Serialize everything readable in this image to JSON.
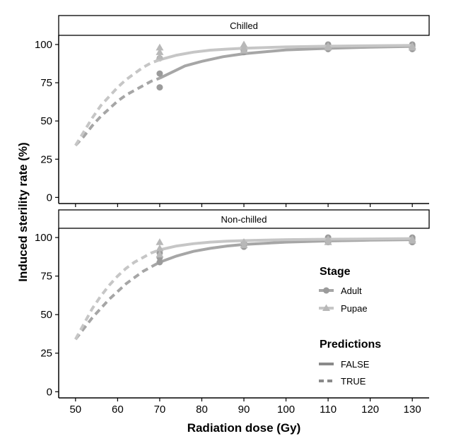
{
  "chart_data": {
    "type": "line",
    "xlabel": "Radiation dose (Gy)",
    "ylabel": "Induced sterility rate (%)",
    "xlim": [
      46,
      134
    ],
    "ylim": [
      -4,
      106
    ],
    "x_ticks": [
      50,
      60,
      70,
      80,
      90,
      100,
      110,
      120,
      130
    ],
    "y_ticks": [
      0,
      25,
      50,
      75,
      100
    ],
    "grid": false,
    "panels": [
      {
        "strip_label": "Chilled",
        "series": [
          {
            "name": "Adult",
            "points": [
              [
                70,
                72
              ],
              [
                70,
                81
              ],
              [
                70,
                91
              ],
              [
                90,
                95
              ],
              [
                90,
                96
              ],
              [
                90,
                97
              ],
              [
                110,
                97
              ],
              [
                110,
                98
              ],
              [
                110,
                100
              ],
              [
                130,
                97
              ],
              [
                130,
                99
              ],
              [
                130,
                100
              ]
            ],
            "curve_dashed": [
              [
                50,
                34
              ],
              [
                52,
                40
              ],
              [
                54,
                47
              ],
              [
                56,
                53
              ],
              [
                58,
                58
              ],
              [
                60,
                63
              ],
              [
                62,
                67
              ],
              [
                64,
                70
              ],
              [
                66,
                73
              ],
              [
                68,
                76
              ],
              [
                70,
                78
              ]
            ],
            "curve_solid": [
              [
                70,
                78
              ],
              [
                73,
                82
              ],
              [
                76,
                86
              ],
              [
                80,
                89
              ],
              [
                85,
                92
              ],
              [
                90,
                94
              ],
              [
                100,
                96.5
              ],
              [
                110,
                97.5
              ],
              [
                120,
                98.3
              ],
              [
                130,
                98.8
              ]
            ]
          },
          {
            "name": "Pupae",
            "points": [
              [
                70,
                92
              ],
              [
                70,
                95
              ],
              [
                70,
                98
              ],
              [
                90,
                96
              ],
              [
                90,
                98
              ],
              [
                90,
                100
              ],
              [
                110,
                98
              ],
              [
                110,
                99
              ],
              [
                130,
                98
              ],
              [
                130,
                99
              ]
            ],
            "curve_dashed": [
              [
                50,
                34
              ],
              [
                52,
                43
              ],
              [
                54,
                52
              ],
              [
                56,
                60
              ],
              [
                58,
                66
              ],
              [
                60,
                72
              ],
              [
                62,
                77
              ],
              [
                64,
                81
              ],
              [
                66,
                85
              ],
              [
                68,
                88
              ],
              [
                70,
                90
              ]
            ],
            "curve_solid": [
              [
                70,
                90
              ],
              [
                74,
                93
              ],
              [
                78,
                95
              ],
              [
                82,
                96.3
              ],
              [
                86,
                97
              ],
              [
                90,
                97.6
              ],
              [
                100,
                98.4
              ],
              [
                110,
                98.9
              ],
              [
                120,
                99.2
              ],
              [
                130,
                99.4
              ]
            ]
          }
        ]
      },
      {
        "strip_label": "Non-chilled",
        "series": [
          {
            "name": "Adult",
            "points": [
              [
                70,
                84
              ],
              [
                70,
                87
              ],
              [
                70,
                90
              ],
              [
                90,
                94
              ],
              [
                90,
                97
              ],
              [
                110,
                97
              ],
              [
                110,
                98
              ],
              [
                110,
                100
              ],
              [
                130,
                97
              ],
              [
                130,
                99
              ],
              [
                130,
                100
              ]
            ],
            "curve_dashed": [
              [
                50,
                34
              ],
              [
                52,
                41
              ],
              [
                54,
                48
              ],
              [
                56,
                54
              ],
              [
                58,
                60
              ],
              [
                60,
                65
              ],
              [
                62,
                70
              ],
              [
                64,
                74
              ],
              [
                66,
                78
              ],
              [
                68,
                81
              ],
              [
                70,
                84
              ]
            ],
            "curve_solid": [
              [
                70,
                84
              ],
              [
                74,
                88
              ],
              [
                78,
                91
              ],
              [
                82,
                93
              ],
              [
                86,
                94.5
              ],
              [
                90,
                95.5
              ],
              [
                100,
                97
              ],
              [
                110,
                97.8
              ],
              [
                120,
                98.3
              ],
              [
                130,
                98.6
              ]
            ]
          },
          {
            "name": "Pupae",
            "points": [
              [
                70,
                89
              ],
              [
                70,
                93
              ],
              [
                70,
                97
              ],
              [
                90,
                95
              ],
              [
                90,
                97
              ],
              [
                110,
                97
              ],
              [
                110,
                99
              ],
              [
                130,
                98
              ],
              [
                130,
                99
              ]
            ],
            "curve_dashed": [
              [
                50,
                34
              ],
              [
                52,
                44
              ],
              [
                54,
                54
              ],
              [
                56,
                62
              ],
              [
                58,
                69
              ],
              [
                60,
                75
              ],
              [
                62,
                80
              ],
              [
                64,
                84
              ],
              [
                66,
                87
              ],
              [
                68,
                90
              ],
              [
                70,
                92
              ]
            ],
            "curve_solid": [
              [
                70,
                92
              ],
              [
                74,
                94.5
              ],
              [
                78,
                96
              ],
              [
                82,
                97
              ],
              [
                86,
                97.6
              ],
              [
                90,
                98
              ],
              [
                100,
                98.6
              ],
              [
                110,
                98.9
              ],
              [
                120,
                99.1
              ],
              [
                130,
                99.3
              ]
            ]
          }
        ]
      }
    ],
    "legend": {
      "placement": "right",
      "stage_title": "Stage",
      "stage_entries": [
        "Adult",
        "Pupae"
      ],
      "predictions_title": "Predictions",
      "predictions_entries": [
        "FALSE",
        "TRUE"
      ]
    },
    "colors": {
      "Adult": "#a6a6a6",
      "Pupae": "#c6c6c6",
      "Adult_point": "#9b9b9b",
      "Pupae_point": "#b8b8b8"
    }
  }
}
